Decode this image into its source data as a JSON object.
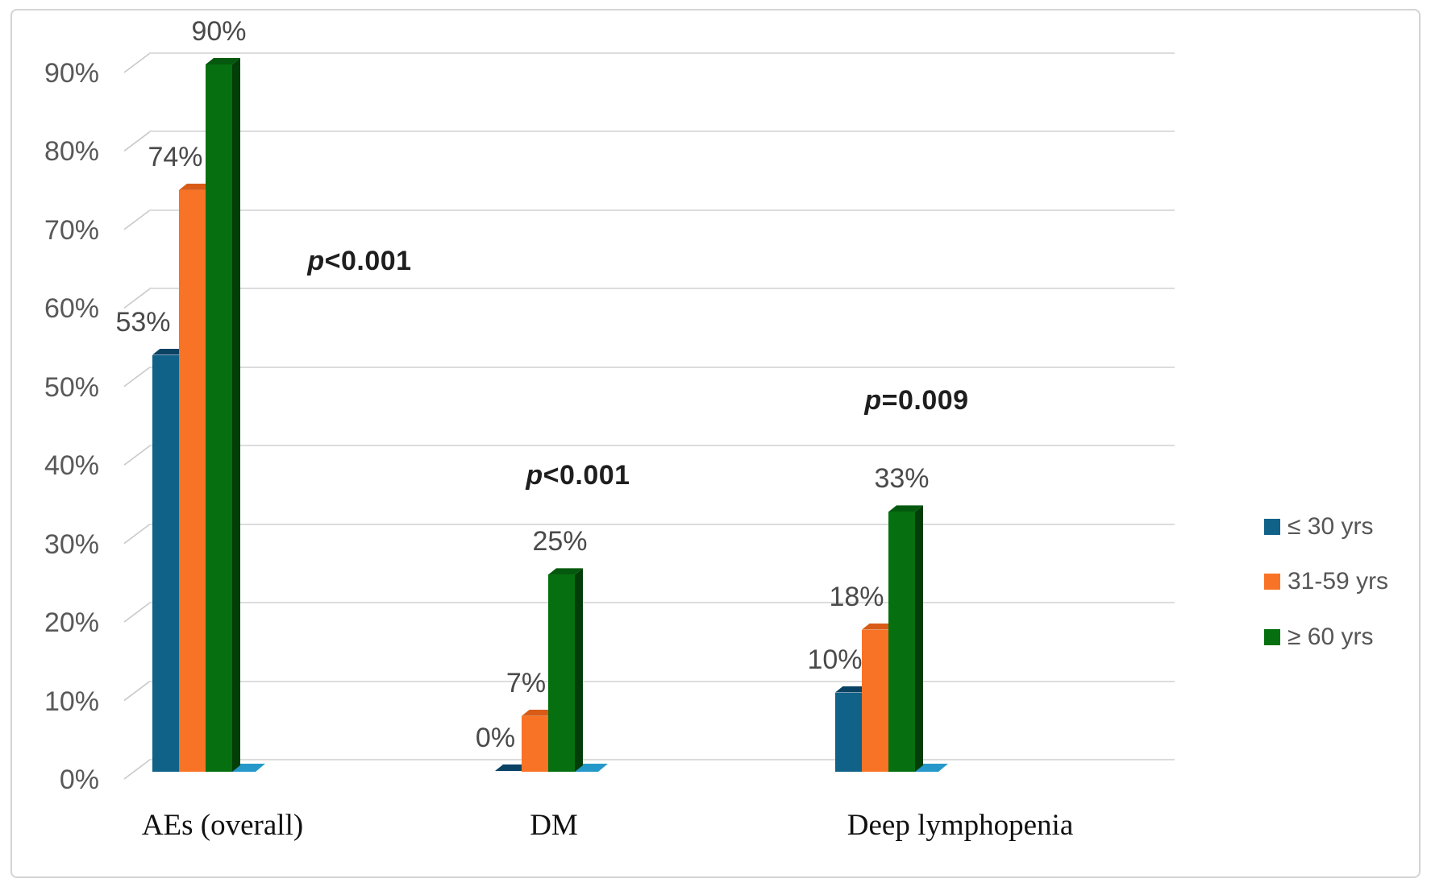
{
  "figure": {
    "background_color": "#ffffff",
    "border_color": "#d4d4d4"
  },
  "chart_data": {
    "type": "bar",
    "subtype": "3d-clustered-column",
    "title": "",
    "xlabel": "",
    "ylabel": "",
    "categories": [
      "AEs (overall)",
      "DM",
      "Deep lymphopenia"
    ],
    "series": [
      {
        "name": "≤ 30 yrs",
        "color": "#116288",
        "top_color": "#0a4264",
        "side_color": "#093754",
        "values": [
          53,
          0,
          10
        ],
        "data_labels": [
          "53%",
          "0%",
          "10%"
        ]
      },
      {
        "name": "31-59 yrs",
        "color": "#f97326",
        "top_color": "#d85c17",
        "side_color": "#b54d13",
        "values": [
          74,
          7,
          18
        ],
        "data_labels": [
          "74%",
          "7%",
          "18%"
        ]
      },
      {
        "name": "≥ 60 yrs",
        "color": "#067011",
        "top_color": "#05590e",
        "side_color": "#033d08",
        "values": [
          90,
          25,
          33
        ],
        "data_labels": [
          "90%",
          "25%",
          "33%"
        ]
      }
    ],
    "floor_color": "#2598ca",
    "annotations": [
      {
        "text": "p<0.001",
        "category": "AEs (overall)"
      },
      {
        "text": "p<0.001",
        "category": "DM"
      },
      {
        "text": "p=0.009",
        "category": "Deep lymphopenia"
      }
    ],
    "y_axis": {
      "min": 0,
      "max": 90,
      "step": 10,
      "tick_labels": [
        "0%",
        "10%",
        "20%",
        "30%",
        "40%",
        "50%",
        "60%",
        "70%",
        "80%",
        "90%"
      ],
      "tick_color": "#595959"
    },
    "grid": true,
    "gridline_color": "#dcdcdc",
    "legend": {
      "position": "right",
      "entries": [
        "≤ 30 yrs",
        "31-59 yrs",
        "≥ 60 yrs"
      ]
    }
  }
}
